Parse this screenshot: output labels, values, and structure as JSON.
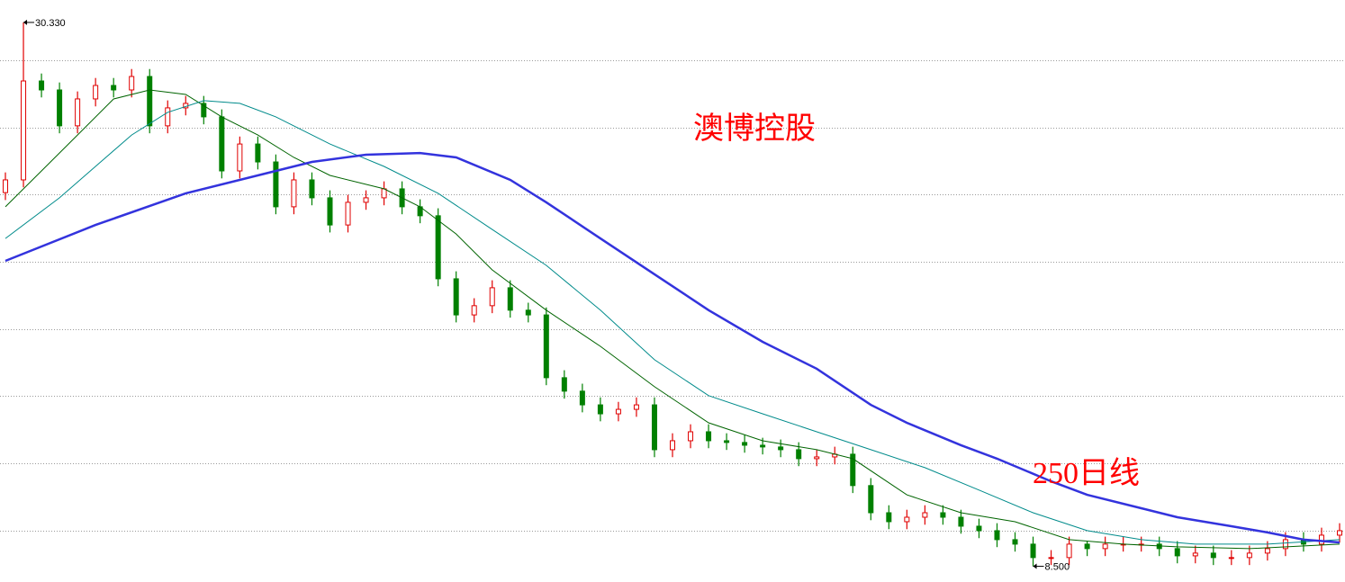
{
  "chart_data": {
    "type": "candlestick",
    "title": "澳博控股",
    "up_color": "#e00000",
    "down_color": "#008000",
    "ylim": [
      7.87,
      31.23
    ],
    "xlim": [
      -0.3,
      74.3
    ],
    "yticks": [
      28.81,
      26.1,
      23.43,
      20.73,
      18.02,
      15.35,
      12.64,
      9.94
    ],
    "grid": true,
    "open": [
      23.5,
      24.01,
      27.98,
      27.62,
      26.18,
      27.26,
      27.8,
      27.62,
      28.16,
      26.18,
      26.9,
      27.08,
      26.54,
      24.37,
      25.45,
      24.73,
      22.93,
      24.01,
      23.29,
      22.2,
      23.11,
      23.29,
      23.65,
      22.93,
      22.57,
      20.04,
      18.59,
      18.96,
      19.68,
      18.78,
      18.59,
      16.07,
      15.53,
      14.98,
      14.62,
      14.8,
      14.98,
      13.18,
      13.54,
      13.9,
      13.54,
      13.47,
      13.36,
      13.29,
      13.18,
      12.82,
      12.89,
      13.0,
      11.74,
      10.65,
      10.29,
      10.47,
      10.65,
      10.47,
      10.11,
      9.93,
      9.57,
      9.39,
      8.85,
      8.85,
      9.39,
      9.21,
      9.39,
      9.39,
      9.39,
      9.21,
      8.92,
      9.03,
      8.85,
      8.85,
      9.03,
      9.21,
      9.57,
      9.39,
      9.75
    ],
    "high": [
      24.31,
      30.33,
      28.28,
      27.92,
      27.56,
      28.1,
      28.1,
      28.46,
      28.46,
      27.2,
      27.38,
      27.38,
      26.84,
      25.75,
      25.75,
      25.03,
      24.31,
      24.31,
      23.59,
      23.41,
      23.59,
      23.95,
      23.95,
      23.23,
      22.87,
      20.34,
      19.26,
      19.98,
      19.98,
      19.08,
      18.89,
      16.37,
      15.83,
      15.28,
      15.1,
      15.28,
      15.28,
      13.84,
      14.2,
      14.2,
      13.84,
      13.77,
      13.66,
      13.59,
      13.48,
      13.19,
      13.3,
      13.3,
      12.04,
      10.95,
      10.77,
      10.95,
      10.95,
      10.77,
      10.41,
      10.23,
      9.87,
      9.69,
      9.15,
      9.69,
      9.51,
      9.69,
      9.69,
      9.69,
      9.69,
      9.51,
      9.33,
      9.33,
      9.15,
      9.33,
      9.51,
      9.87,
      9.87,
      10.05,
      10.23
    ],
    "low": [
      23.2,
      23.71,
      27.32,
      25.88,
      25.88,
      26.96,
      27.32,
      27.32,
      25.88,
      25.88,
      26.6,
      26.24,
      24.07,
      24.07,
      24.43,
      22.63,
      22.63,
      22.99,
      21.9,
      21.9,
      22.81,
      22.99,
      22.63,
      22.27,
      19.74,
      18.29,
      18.29,
      18.66,
      18.48,
      18.29,
      15.77,
      15.23,
      14.68,
      14.32,
      14.32,
      14.5,
      12.88,
      12.88,
      13.24,
      13.24,
      13.17,
      13.06,
      12.99,
      12.88,
      12.52,
      12.52,
      12.59,
      11.44,
      10.35,
      9.99,
      9.99,
      10.17,
      10.17,
      9.81,
      9.63,
      9.27,
      9.09,
      8.5,
      8.55,
      8.55,
      8.91,
      8.91,
      9.09,
      9.09,
      8.91,
      8.62,
      8.62,
      8.55,
      8.55,
      8.55,
      8.73,
      8.91,
      9.09,
      9.09,
      9.45
    ],
    "close": [
      24.01,
      27.98,
      27.62,
      26.18,
      27.26,
      27.8,
      27.62,
      28.16,
      26.18,
      26.9,
      27.08,
      26.54,
      24.37,
      25.45,
      24.73,
      22.93,
      24.01,
      23.29,
      22.2,
      23.11,
      23.29,
      23.65,
      22.93,
      22.57,
      20.04,
      18.59,
      18.96,
      19.68,
      18.78,
      18.59,
      16.07,
      15.53,
      14.98,
      14.62,
      14.8,
      14.98,
      13.18,
      13.54,
      13.9,
      13.54,
      13.47,
      13.36,
      13.29,
      13.18,
      12.82,
      12.89,
      13.0,
      11.74,
      10.65,
      10.29,
      10.47,
      10.65,
      10.47,
      10.11,
      9.93,
      9.57,
      9.39,
      8.85,
      8.85,
      9.39,
      9.21,
      9.39,
      9.39,
      9.39,
      9.21,
      8.92,
      9.03,
      8.85,
      8.85,
      9.03,
      9.21,
      9.57,
      9.39,
      9.75,
      9.93
    ],
    "series": [
      {
        "color": "#006400",
        "width": 1,
        "x": [
          0,
          2,
          4,
          6,
          8,
          10,
          12,
          14,
          16,
          18,
          21,
          23,
          25,
          27,
          30,
          33,
          36,
          39,
          42,
          45,
          47,
          50,
          53,
          56,
          59,
          62,
          65,
          69,
          74
        ],
        "values": [
          22.93,
          24.37,
          25.81,
          27.26,
          27.62,
          27.44,
          26.54,
          25.81,
          24.91,
          24.19,
          23.65,
          22.93,
          21.84,
          20.4,
          18.78,
          17.33,
          15.71,
          14.26,
          13.54,
          13.18,
          12.82,
          11.37,
          10.65,
          10.29,
          9.57,
          9.39,
          9.28,
          9.21,
          9.39
        ]
      },
      {
        "color": "#008b8b",
        "width": 1,
        "x": [
          0,
          3,
          5,
          7,
          9,
          11,
          13,
          15,
          18,
          21,
          24,
          27,
          30,
          33,
          36,
          39,
          42,
          45,
          48,
          51,
          54,
          57,
          60,
          63,
          66,
          70,
          74
        ],
        "values": [
          21.66,
          23.29,
          24.55,
          25.81,
          26.72,
          27.19,
          27.08,
          26.54,
          25.45,
          24.55,
          23.47,
          22.02,
          20.58,
          18.78,
          16.79,
          15.35,
          14.62,
          13.9,
          13.18,
          12.46,
          11.56,
          10.65,
          9.93,
          9.57,
          9.39,
          9.39,
          9.57
        ]
      },
      {
        "color": "#3333dd",
        "width": 2.5,
        "x": [
          0,
          5,
          10,
          15,
          17,
          20,
          23,
          25,
          28,
          30,
          33,
          36,
          39,
          42,
          45,
          48,
          50,
          53,
          55,
          58,
          60,
          63,
          65,
          68,
          70,
          72,
          74
        ],
        "values": [
          20.76,
          22.2,
          23.47,
          24.37,
          24.73,
          25.02,
          25.09,
          24.91,
          24.01,
          23.11,
          21.66,
          20.22,
          18.78,
          17.51,
          16.43,
          14.98,
          14.26,
          13.36,
          12.82,
          11.91,
          11.37,
          10.83,
          10.47,
          10.11,
          9.86,
          9.57,
          9.46
        ]
      }
    ],
    "annotations": [
      {
        "label": "30.330",
        "value": 30.33,
        "x": 1
      },
      {
        "label": "8.500",
        "value": 8.5,
        "x": 57
      },
      {
        "label": "250日线"
      }
    ]
  }
}
